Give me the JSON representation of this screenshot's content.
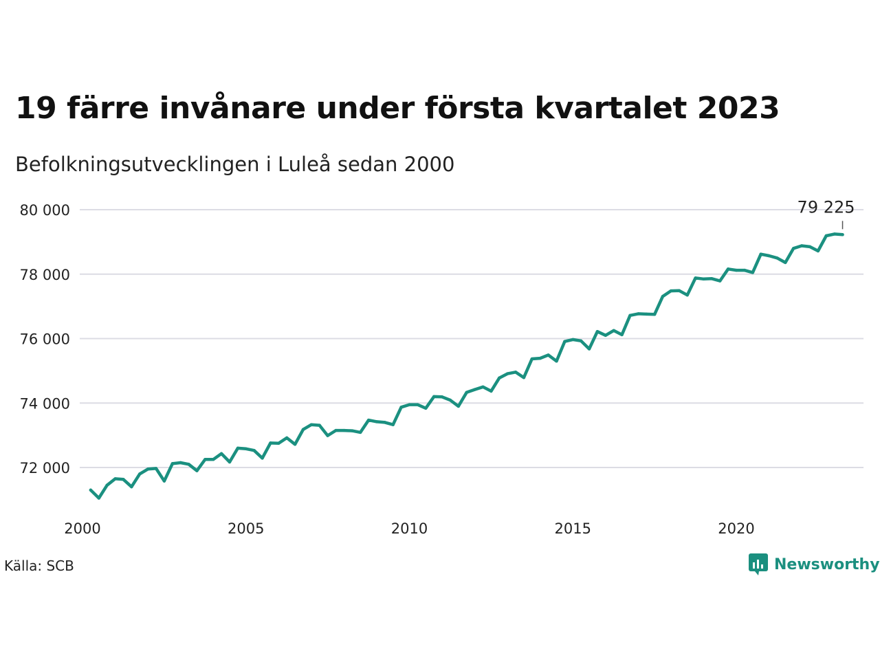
{
  "title": "19 färre invånare under första kvartalet 2023",
  "subtitle": "Befolkningsutvecklingen i Luleå sedan 2000",
  "source": "Källa: SCB",
  "brand": {
    "name": "Newsworthy",
    "icon": "newsworthy-logo-icon",
    "color": "#1b8f7f"
  },
  "chart_data": {
    "type": "line",
    "title": "19 färre invånare under första kvartalet 2023",
    "subtitle": "Befolkningsutvecklingen i Luleå sedan 2000",
    "xlabel": "",
    "ylabel": "",
    "xlim": [
      2000,
      2024
    ],
    "ylim": [
      70800,
      80500
    ],
    "x_ticks": [
      2000,
      2005,
      2010,
      2015,
      2020
    ],
    "x_tick_labels": [
      "2000",
      "2005",
      "2010",
      "2015",
      "2020"
    ],
    "y_ticks": [
      72000,
      74000,
      76000,
      78000,
      80000
    ],
    "y_tick_labels": [
      "72 000",
      "74 000",
      "76 000",
      "78 000",
      "80 000"
    ],
    "grid": true,
    "line_color": "#1b9080",
    "end_label": "79 225",
    "series": [
      {
        "x": [
          2000.25,
          2000.5,
          2000.75,
          2001.0,
          2001.25,
          2001.5,
          2001.75,
          2002.0,
          2002.25,
          2002.5,
          2002.75,
          2003.0,
          2003.25,
          2003.5,
          2003.75,
          2004.0,
          2004.25,
          2004.5,
          2004.75,
          2005.0,
          2005.25,
          2005.5,
          2005.75,
          2006.0,
          2006.25,
          2006.5,
          2006.75,
          2007.0,
          2007.25,
          2007.5,
          2007.75,
          2008.0,
          2008.25,
          2008.5,
          2008.75,
          2009.0,
          2009.25,
          2009.5,
          2009.75,
          2010.0,
          2010.25,
          2010.5,
          2010.75,
          2011.0,
          2011.25,
          2011.5,
          2011.75,
          2012.0,
          2012.25,
          2012.5,
          2012.75,
          2013.0,
          2013.25,
          2013.5,
          2013.75,
          2014.0,
          2014.25,
          2014.5,
          2014.75,
          2015.0,
          2015.25,
          2015.5,
          2015.75,
          2016.0,
          2016.25,
          2016.5,
          2016.75,
          2017.0,
          2017.25,
          2017.5,
          2017.75,
          2018.0,
          2018.25,
          2018.5,
          2018.75,
          2019.0,
          2019.25,
          2019.5,
          2019.75,
          2020.0,
          2020.25,
          2020.5,
          2020.75,
          2021.0,
          2021.25,
          2021.5,
          2021.75,
          2022.0,
          2022.25,
          2022.5,
          2022.75,
          2023.0,
          2023.25
        ],
        "y": [
          71300,
          71050,
          71450,
          71650,
          71630,
          71400,
          71800,
          71950,
          71970,
          71580,
          72120,
          72150,
          72100,
          71900,
          72250,
          72250,
          72430,
          72170,
          72600,
          72580,
          72530,
          72290,
          72760,
          72750,
          72920,
          72720,
          73180,
          73330,
          73310,
          72990,
          73150,
          73150,
          73140,
          73090,
          73470,
          73420,
          73400,
          73330,
          73870,
          73950,
          73950,
          73840,
          74200,
          74190,
          74090,
          73900,
          74330,
          74420,
          74500,
          74370,
          74780,
          74910,
          74960,
          74790,
          75370,
          75390,
          75490,
          75300,
          75910,
          75970,
          75930,
          75680,
          76220,
          76100,
          76250,
          76120,
          76720,
          76770,
          76760,
          76750,
          77310,
          77480,
          77490,
          77350,
          77880,
          77850,
          77860,
          77790,
          78160,
          78120,
          78120,
          78050,
          78620,
          78570,
          78500,
          78360,
          78800,
          78880,
          78850,
          78720,
          79190,
          79244,
          79225
        ]
      }
    ]
  }
}
